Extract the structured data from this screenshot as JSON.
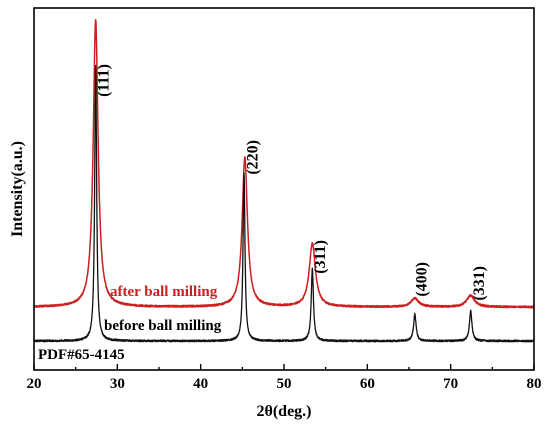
{
  "chart_data": {
    "type": "line",
    "xlabel": "2θ(deg.)",
    "ylabel": "Intensity(a.u.)",
    "xlim": [
      20,
      80
    ],
    "xticks": [
      20,
      30,
      40,
      50,
      60,
      70,
      80
    ],
    "y_ticks_shown": false,
    "grid": false,
    "series": [
      {
        "name": "after ball milling",
        "color": "#cc1f1f",
        "baseline": 0.07,
        "peaks": [
          {
            "x": 27.4,
            "height": 1.0,
            "width": 0.35
          },
          {
            "x": 45.3,
            "height": 0.52,
            "width": 0.38
          },
          {
            "x": 53.4,
            "height": 0.22,
            "width": 0.45
          },
          {
            "x": 65.7,
            "height": 0.03,
            "width": 0.55
          },
          {
            "x": 72.4,
            "height": 0.04,
            "width": 0.55
          }
        ]
      },
      {
        "name": "before ball milling",
        "color": "#111111",
        "baseline": 0.0,
        "peaks": [
          {
            "x": 27.4,
            "height": 0.92,
            "width": 0.14
          },
          {
            "x": 45.2,
            "height": 0.56,
            "width": 0.14
          },
          {
            "x": 53.4,
            "height": 0.24,
            "width": 0.16
          },
          {
            "x": 65.7,
            "height": 0.09,
            "width": 0.18
          },
          {
            "x": 72.4,
            "height": 0.1,
            "width": 0.18
          }
        ]
      }
    ],
    "reference_label": "PDF#65-4145",
    "peak_labels": [
      {
        "text": "(111)",
        "x": 28.2
      },
      {
        "text": "(220)",
        "x": 46.1
      },
      {
        "text": "(311)",
        "x": 54.2
      },
      {
        "text": "(400)",
        "x": 66.4
      },
      {
        "text": "(331)",
        "x": 73.3
      }
    ]
  }
}
